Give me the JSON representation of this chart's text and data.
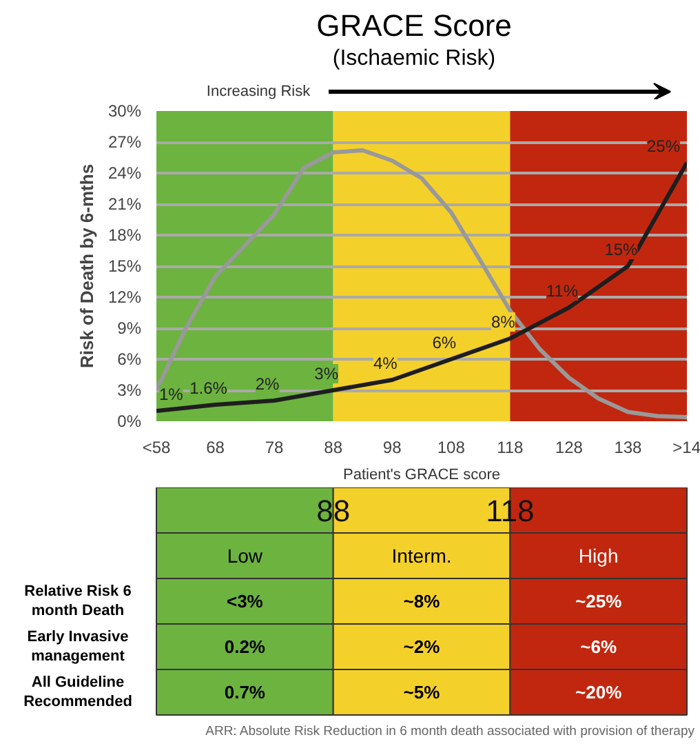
{
  "chart_data": {
    "type": "line",
    "title": "GRACE Score",
    "subtitle": "(Ischaemic Risk)",
    "xlabel": "Patient's GRACE score",
    "ylabel": "Risk of Death by 6-mths",
    "x": [
      58,
      68,
      78,
      88,
      98,
      108,
      118,
      128,
      138,
      148
    ],
    "series": [
      {
        "color": "#999999",
        "x": [
          58,
          63,
          68,
          73,
          78,
          83,
          88,
          93,
          98,
          103,
          108,
          113,
          118,
          123,
          128,
          133,
          138,
          143,
          148
        ],
        "values": [
          3,
          9,
          14,
          17,
          20,
          24.5,
          26,
          26.2,
          25.2,
          23.5,
          20.2,
          15.5,
          10.7,
          7,
          4.2,
          2.2,
          0.9,
          0.5,
          0.4
        ]
      },
      {
        "color": "#1e1e1e",
        "values": [
          1,
          1.6,
          2,
          3,
          4,
          6,
          8,
          11,
          15,
          25
        ],
        "value_labels": [
          "1%",
          "1.6%",
          "2%",
          "3%",
          "4%",
          "6%",
          "8%",
          "11%",
          "15%",
          "25%"
        ]
      }
    ],
    "xlim": [
      58,
      148
    ],
    "ylim": [
      0,
      30
    ],
    "xticks": [
      {
        "value": 58,
        "label": "<58"
      },
      68,
      78,
      88,
      98,
      108,
      118,
      128,
      138,
      {
        "value": 148,
        "label": ">14"
      }
    ],
    "yticks": [
      {
        "value": 0,
        "label": "0%"
      },
      {
        "value": 3,
        "label": "3%"
      },
      {
        "value": 6,
        "label": "6%"
      },
      {
        "value": 9,
        "label": "9%"
      },
      {
        "value": 12,
        "label": "12%"
      },
      {
        "value": 15,
        "label": "15%"
      },
      {
        "value": 18,
        "label": "18%"
      },
      {
        "value": 21,
        "label": "21%"
      },
      {
        "value": 24,
        "label": "24%"
      },
      {
        "value": 27,
        "label": "27%"
      },
      {
        "value": 30,
        "label": "30%"
      }
    ],
    "bands": [
      {
        "axis": "x",
        "from": 58,
        "to": 88,
        "color": "#6db33f"
      },
      {
        "axis": "x",
        "from": 88,
        "to": 118,
        "color": "#f4d02b"
      },
      {
        "axis": "x",
        "from": 118,
        "to": 148,
        "color": "#c1270f"
      }
    ],
    "annotations": [
      "Increasing Risk",
      "88",
      "118",
      "Low",
      "Interm.",
      "High",
      "Relative Risk 6 month Death",
      "Early Invasive management",
      "All Guideline Recommended",
      "<3%",
      "~8%",
      "~25%",
      "0.2%",
      "~2%",
      "~6%",
      "0.7%",
      "~5%",
      "~20%",
      "ARR: Absolute Risk Reduction in 6 month death associated with provision of therapy"
    ],
    "grid": "y",
    "marker": "none",
    "line_style": "solid"
  }
}
